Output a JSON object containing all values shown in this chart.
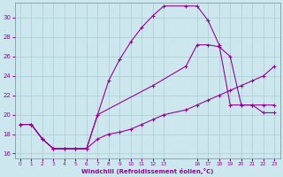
{
  "xlabel": "Windchill (Refroidissement éolien,°C)",
  "bg_color": "#cce8ee",
  "grid_color": "#aacccc",
  "line_color": "#990099",
  "xlim": [
    -0.5,
    23.5
  ],
  "ylim": [
    15.5,
    31.5
  ],
  "xticks": [
    0,
    1,
    2,
    3,
    4,
    5,
    6,
    7,
    8,
    9,
    10,
    11,
    12,
    13,
    16,
    17,
    18,
    19,
    20,
    21,
    22,
    23
  ],
  "yticks": [
    16,
    18,
    20,
    22,
    24,
    26,
    28,
    30
  ],
  "line1_x": [
    0,
    1,
    2,
    3,
    4,
    5,
    6,
    7,
    12,
    15,
    16,
    17,
    18,
    19,
    20,
    21,
    22,
    23
  ],
  "line1_y": [
    19,
    19,
    17.5,
    16.5,
    16.5,
    16.5,
    16.5,
    20,
    23,
    25,
    27.2,
    27.2,
    27,
    26,
    21,
    21,
    20.2,
    20.2
  ],
  "line2_x": [
    0,
    1,
    2,
    3,
    4,
    5,
    6,
    7,
    8,
    9,
    10,
    11,
    12,
    13,
    15,
    16,
    17,
    18,
    19,
    20,
    21,
    22,
    23
  ],
  "line2_y": [
    19,
    19,
    17.5,
    16.5,
    16.5,
    16.5,
    16.5,
    20,
    23.5,
    25.7,
    27.5,
    29.0,
    30.2,
    31.2,
    31.2,
    31.2,
    29.7,
    27.2,
    21.0,
    21.0,
    21.0,
    21.0,
    21.0
  ],
  "line3_x": [
    0,
    1,
    2,
    3,
    4,
    5,
    6,
    7,
    8,
    9,
    10,
    11,
    12,
    13,
    15,
    16,
    17,
    18,
    19,
    20,
    21,
    22,
    23
  ],
  "line3_y": [
    19,
    19,
    17.5,
    16.5,
    16.5,
    16.5,
    16.5,
    17.5,
    18,
    18.2,
    18.5,
    19,
    19.5,
    20,
    20.5,
    21,
    21.5,
    22,
    22.5,
    23,
    23.5,
    24,
    25
  ]
}
